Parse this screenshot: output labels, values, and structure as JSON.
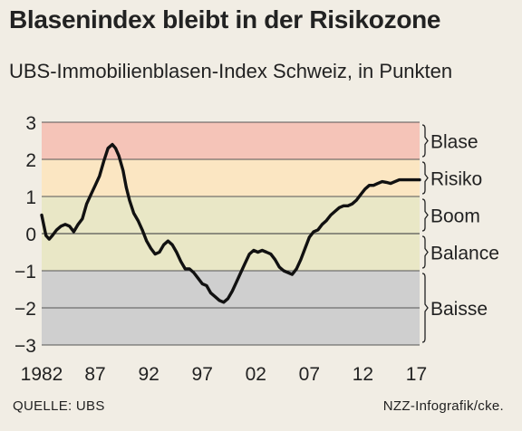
{
  "title": "Blasenindex bleibt in der Risikozone",
  "subtitle": "UBS-Immobilienblasen-Index Schweiz, in Punkten",
  "source": "QUELLE: UBS",
  "credit": "NZZ-Infografik/cke.",
  "chart_data": {
    "type": "line",
    "title": "Blasenindex bleibt in der Risikozone",
    "subtitle": "UBS-Immobilienblasen-Index Schweiz, in Punkten",
    "xlim": [
      1982,
      2017.3
    ],
    "ylim": [
      -3,
      3
    ],
    "x_ticks": [
      1982,
      1987,
      1992,
      1997,
      2002,
      2007,
      2012,
      2017
    ],
    "x_tick_labels": [
      "1982",
      "87",
      "92",
      "97",
      "02",
      "07",
      "12",
      "17"
    ],
    "y_ticks": [
      3,
      2,
      1,
      0,
      -1,
      -2,
      -3
    ],
    "y_tick_labels": [
      "3",
      "2",
      "1",
      "0",
      "−1",
      "−2",
      "−3"
    ],
    "grid": true,
    "zones": [
      {
        "name": "Blase",
        "from": 2,
        "to": 3,
        "color": "#f5c4b8"
      },
      {
        "name": "Risiko",
        "from": 1,
        "to": 2,
        "color": "#fbe6c2"
      },
      {
        "name": "Boom",
        "from": 0,
        "to": 1,
        "color": "#e9e7c6"
      },
      {
        "name": "Balance",
        "from": -1,
        "to": 0,
        "color": "#e9e7c6"
      },
      {
        "name": "Baisse",
        "from": -3,
        "to": -1,
        "color": "#cfcfcf"
      }
    ],
    "series": [
      {
        "color": "#111111",
        "x": [
          1982.0,
          1982.4,
          1982.7,
          1983.0,
          1983.4,
          1983.8,
          1984.2,
          1984.6,
          1985.0,
          1985.4,
          1985.8,
          1986.2,
          1986.6,
          1987.0,
          1987.4,
          1987.8,
          1988.2,
          1988.6,
          1988.9,
          1989.2,
          1989.6,
          1989.9,
          1990.2,
          1990.6,
          1991.0,
          1991.4,
          1991.8,
          1992.2,
          1992.6,
          1993.0,
          1993.4,
          1993.8,
          1994.2,
          1994.6,
          1995.0,
          1995.4,
          1995.8,
          1996.2,
          1996.6,
          1997.0,
          1997.4,
          1997.8,
          1998.2,
          1998.6,
          1999.0,
          1999.4,
          1999.8,
          2000.2,
          2000.6,
          2001.0,
          2001.4,
          2001.8,
          2002.2,
          2002.6,
          2003.0,
          2003.4,
          2003.8,
          2004.2,
          2004.6,
          2005.0,
          2005.4,
          2005.8,
          2006.2,
          2006.6,
          2007.0,
          2007.4,
          2007.8,
          2008.2,
          2008.6,
          2009.0,
          2009.4,
          2009.8,
          2010.2,
          2010.6,
          2011.0,
          2011.4,
          2011.8,
          2012.2,
          2012.6,
          2013.0,
          2013.4,
          2013.8,
          2014.2,
          2014.6,
          2015.0,
          2015.4,
          2015.8,
          2016.2,
          2016.6,
          2017.0,
          2017.3
        ],
        "y": [
          0.5,
          -0.05,
          -0.15,
          -0.05,
          0.1,
          0.2,
          0.25,
          0.2,
          0.05,
          0.25,
          0.4,
          0.8,
          1.05,
          1.3,
          1.55,
          1.95,
          2.3,
          2.4,
          2.3,
          2.1,
          1.7,
          1.25,
          0.9,
          0.55,
          0.35,
          0.1,
          -0.2,
          -0.4,
          -0.55,
          -0.5,
          -0.3,
          -0.2,
          -0.3,
          -0.5,
          -0.75,
          -0.95,
          -0.95,
          -1.05,
          -1.2,
          -1.35,
          -1.4,
          -1.6,
          -1.7,
          -1.8,
          -1.85,
          -1.75,
          -1.55,
          -1.3,
          -1.05,
          -0.8,
          -0.55,
          -0.45,
          -0.5,
          -0.45,
          -0.5,
          -0.55,
          -0.7,
          -0.9,
          -1.0,
          -1.05,
          -1.1,
          -0.95,
          -0.7,
          -0.4,
          -0.1,
          0.05,
          0.1,
          0.25,
          0.35,
          0.5,
          0.6,
          0.7,
          0.75,
          0.75,
          0.8,
          0.9,
          1.05,
          1.2,
          1.3,
          1.3,
          1.35,
          1.4,
          1.38,
          1.35,
          1.4,
          1.45,
          1.45,
          1.45,
          1.45,
          1.45,
          1.45
        ]
      }
    ]
  }
}
